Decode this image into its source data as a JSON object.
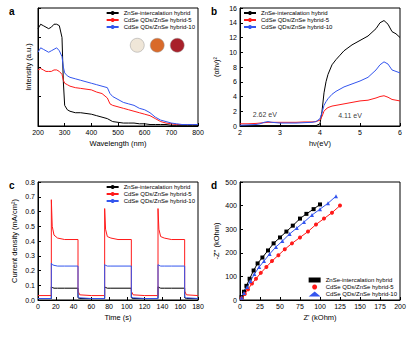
{
  "chart_data": [
    {
      "type": "line",
      "label": "a",
      "x_label": "Wavelength (nm)",
      "y_label": "Intensity (a.u.)",
      "x": [
        200,
        210,
        220,
        230,
        240,
        250,
        260,
        270,
        280,
        290,
        295,
        300,
        310,
        320,
        340,
        360,
        380,
        400,
        420,
        440,
        460,
        470,
        480,
        500,
        520,
        540,
        560,
        580,
        600,
        620,
        640,
        660,
        680,
        700,
        720,
        740,
        760,
        780,
        800
      ],
      "series": [
        {
          "name": "ZnSe-intercalation hybrid",
          "color": "#000000",
          "values": [
            0.66,
            0.69,
            0.68,
            0.67,
            0.66,
            0.67,
            0.69,
            0.69,
            0.68,
            0.6,
            0.3,
            0.14,
            0.11,
            0.1,
            0.09,
            0.09,
            0.085,
            0.08,
            0.07,
            0.06,
            0.05,
            0.04,
            0.03,
            0.025,
            0.02,
            0.02,
            0.02,
            0.015,
            0.015,
            0.01,
            0.01,
            0.01,
            0.01,
            0.005,
            0.005,
            0.005,
            0.005,
            0.005,
            0.005
          ]
        },
        {
          "name": "CdSe QDs/ZnSe hybrid-5",
          "color": "#ff1a1a",
          "values": [
            0.38,
            0.39,
            0.38,
            0.37,
            0.37,
            0.37,
            0.38,
            0.38,
            0.37,
            0.35,
            0.31,
            0.29,
            0.28,
            0.27,
            0.26,
            0.255,
            0.25,
            0.245,
            0.23,
            0.22,
            0.19,
            0.15,
            0.14,
            0.13,
            0.12,
            0.11,
            0.1,
            0.09,
            0.08,
            0.07,
            0.05,
            0.03,
            0.02,
            0.015,
            0.01,
            0.01,
            0.01,
            0.01,
            0.01
          ]
        },
        {
          "name": "CdSe QDs/ZnSe hybrid-10",
          "color": "#3355ee",
          "values": [
            0.5,
            0.53,
            0.52,
            0.51,
            0.5,
            0.51,
            0.52,
            0.53,
            0.51,
            0.47,
            0.4,
            0.36,
            0.34,
            0.33,
            0.32,
            0.31,
            0.3,
            0.29,
            0.28,
            0.27,
            0.26,
            0.22,
            0.2,
            0.18,
            0.16,
            0.15,
            0.14,
            0.12,
            0.11,
            0.09,
            0.06,
            0.04,
            0.03,
            0.02,
            0.015,
            0.01,
            0.01,
            0.01,
            0.01
          ]
        }
      ],
      "xlim": [
        200,
        800
      ],
      "xticks": [
        200,
        300,
        400,
        500,
        600,
        700,
        800
      ],
      "ylim": [
        0,
        0.8
      ],
      "yticks": [
        0,
        0.2,
        0.4,
        0.6,
        0.8
      ],
      "tick_labels": "x",
      "grid": false,
      "legend": "upper right"
    },
    {
      "type": "line",
      "label": "b",
      "x_label": "hν(eV)",
      "y_label": "(αhν)²",
      "x": [
        2.0,
        2.2,
        2.4,
        2.5,
        2.6,
        2.7,
        2.8,
        3.0,
        3.2,
        3.4,
        3.6,
        3.8,
        3.9,
        4.0,
        4.05,
        4.1,
        4.15,
        4.2,
        4.3,
        4.4,
        4.5,
        4.6,
        4.7,
        4.8,
        5.0,
        5.2,
        5.4,
        5.5,
        5.6,
        5.7,
        5.8,
        5.9,
        6.0
      ],
      "series": [
        {
          "name": "ZnSe-intercalation hybrid",
          "color": "#000000",
          "values": [
            0.05,
            0.05,
            0.05,
            0.05,
            0.05,
            0.05,
            0.05,
            0.05,
            0.05,
            0.05,
            0.05,
            0.05,
            0.05,
            0.3,
            2,
            4.5,
            6,
            7,
            8.3,
            9,
            9.6,
            10.2,
            10.6,
            11,
            11.6,
            12.2,
            13.2,
            14,
            14.3,
            13.8,
            12.8,
            12.5,
            12
          ]
        },
        {
          "name": "CdSe QDs/ZnSe hybrid-5",
          "color": "#ff1a1a",
          "values": [
            0.3,
            0.3,
            0.35,
            0.4,
            0.45,
            0.5,
            0.5,
            0.5,
            0.5,
            0.5,
            0.55,
            0.55,
            0.6,
            0.8,
            1.3,
            2.0,
            2.3,
            2.5,
            2.7,
            2.8,
            2.9,
            3.0,
            3.1,
            3.2,
            3.4,
            3.5,
            3.8,
            4.0,
            4.1,
            3.9,
            3.6,
            3.5,
            3.4
          ]
        },
        {
          "name": "CdSe QDs/ZnSe hybrid-10",
          "color": "#3355ee",
          "values": [
            0.1,
            0.15,
            0.2,
            0.3,
            0.5,
            0.6,
            0.5,
            0.4,
            0.4,
            0.4,
            0.45,
            0.5,
            0.6,
            1.0,
            1.8,
            2.8,
            3.3,
            3.7,
            4.3,
            4.7,
            5.0,
            5.3,
            5.5,
            5.7,
            6.1,
            6.6,
            7.6,
            8.3,
            8.7,
            8.4,
            7.6,
            7.4,
            7.2
          ]
        }
      ],
      "annotations": [
        {
          "text": "2.62 eV",
          "x": 2.62,
          "y": 1.6
        },
        {
          "text": "4.11 eV",
          "x": 4.75,
          "y": 1.4
        }
      ],
      "xlim": [
        2,
        6
      ],
      "xticks": [
        2,
        3,
        4,
        5,
        6
      ],
      "ylim": [
        0,
        16
      ],
      "yticks": [
        0,
        2,
        4,
        6,
        8,
        10,
        12,
        14,
        16
      ],
      "grid": false,
      "legend": "upper left"
    },
    {
      "type": "line",
      "label": "c",
      "x_label": "Time (s)",
      "y_label": "Current density (mA/cm²)",
      "x": [
        0,
        15,
        15,
        16,
        18,
        22,
        30,
        45,
        45,
        47,
        60,
        75,
        75,
        76,
        78,
        82,
        90,
        105,
        105,
        107,
        120,
        135,
        135,
        136,
        138,
        142,
        150,
        165,
        165,
        167,
        180
      ],
      "series": [
        {
          "name": "ZnSe-intercalation hybrid",
          "color": "#000000",
          "values": [
            0.01,
            0.01,
            0.09,
            0.085,
            0.08,
            0.08,
            0.08,
            0.08,
            0.015,
            0.01,
            0.01,
            0.01,
            0.09,
            0.085,
            0.08,
            0.08,
            0.08,
            0.08,
            0.015,
            0.01,
            0.01,
            0.01,
            0.09,
            0.085,
            0.08,
            0.08,
            0.08,
            0.08,
            0.015,
            0.01,
            0.01
          ]
        },
        {
          "name": "CdSe QDs/ZnSe hybrid-5",
          "color": "#ff1a1a",
          "values": [
            0.03,
            0.03,
            0.68,
            0.5,
            0.44,
            0.42,
            0.41,
            0.41,
            0.06,
            0.035,
            0.03,
            0.03,
            0.62,
            0.48,
            0.43,
            0.42,
            0.41,
            0.41,
            0.06,
            0.035,
            0.03,
            0.03,
            0.62,
            0.48,
            0.43,
            0.42,
            0.41,
            0.41,
            0.06,
            0.035,
            0.03
          ]
        },
        {
          "name": "CdSe QDs/ZnSe hybrid-10",
          "color": "#3355ee",
          "values": [
            0.01,
            0.01,
            0.25,
            0.24,
            0.235,
            0.23,
            0.23,
            0.23,
            0.02,
            0.015,
            0.01,
            0.01,
            0.24,
            0.235,
            0.23,
            0.23,
            0.23,
            0.23,
            0.02,
            0.015,
            0.01,
            0.01,
            0.24,
            0.235,
            0.23,
            0.23,
            0.23,
            0.23,
            0.02,
            0.015,
            0.01
          ]
        }
      ],
      "xlim": [
        0,
        180
      ],
      "xticks": [
        0,
        20,
        40,
        60,
        80,
        100,
        120,
        140,
        160,
        180
      ],
      "ylim": [
        0,
        0.8
      ],
      "yticks": [
        {
          "value": 0,
          "label": "0.0"
        },
        0.1,
        0.2,
        0.3,
        0.4,
        0.5,
        0.6,
        0.7,
        0.8
      ],
      "grid": false,
      "legend": "upper right"
    },
    {
      "type": "line",
      "label": "d",
      "x_label": "Z' (kOhm)",
      "y_label": "-Z'' (kOhm)",
      "series": [
        {
          "name": "ZnSe-intercalation hybrid",
          "color": "#000000",
          "marker": "square",
          "x": [
            2,
            5,
            8,
            12,
            17,
            22,
            28,
            35,
            42,
            50,
            58,
            66,
            75,
            83,
            92,
            100
          ],
          "values": [
            12,
            35,
            60,
            90,
            125,
            155,
            180,
            210,
            240,
            265,
            290,
            315,
            345,
            365,
            385,
            405
          ]
        },
        {
          "name": "CdSe QDs/ZnSe hybrid-5",
          "color": "#ff1a1a",
          "marker": "circle",
          "x": [
            2,
            6,
            10,
            15,
            20,
            26,
            33,
            40,
            48,
            56,
            65,
            75,
            85,
            95,
            105,
            115,
            125
          ],
          "values": [
            8,
            25,
            45,
            70,
            90,
            115,
            140,
            165,
            190,
            215,
            240,
            265,
            290,
            320,
            345,
            370,
            400
          ]
        },
        {
          "name": "CdSe QDs/ZnSe hybrid-10",
          "color": "#3355ee",
          "marker": "triangle",
          "x": [
            2,
            5,
            9,
            13,
            18,
            24,
            30,
            37,
            45,
            53,
            62,
            71,
            80,
            90,
            100,
            110,
            120
          ],
          "values": [
            10,
            30,
            55,
            80,
            110,
            140,
            165,
            195,
            225,
            250,
            280,
            305,
            330,
            360,
            385,
            410,
            440
          ]
        }
      ],
      "xlim": [
        0,
        200
      ],
      "xticks": [
        0,
        25,
        50,
        75,
        100,
        125,
        150,
        175,
        200
      ],
      "ylim": [
        0,
        500
      ],
      "yticks": [
        0,
        100,
        200,
        300,
        400,
        500
      ],
      "grid": false,
      "legend": "lower right"
    }
  ]
}
